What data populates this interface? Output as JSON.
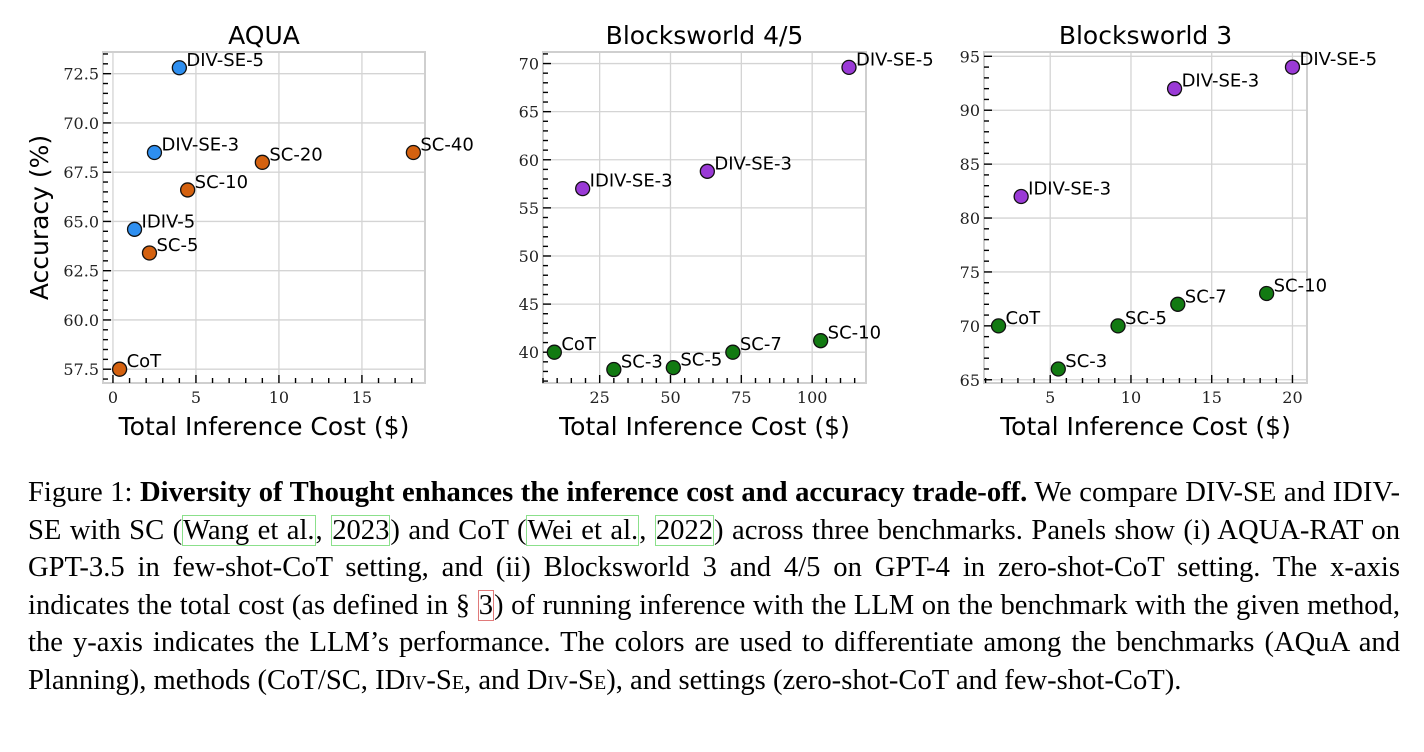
{
  "chart_data": [
    {
      "type": "scatter",
      "title": "AQUA",
      "xlabel": "Total Inference Cost ($)",
      "ylabel": "Accuracy (%)",
      "xlim": [
        -0.6,
        18.8
      ],
      "ylim": [
        56.8,
        73.6
      ],
      "xticks": [
        0,
        5,
        10,
        15
      ],
      "xtick_labels": [
        "0",
        "5",
        "10",
        "15"
      ],
      "x_minor_step": 1,
      "yticks": [
        57.5,
        60.0,
        62.5,
        65.0,
        67.5,
        70.0,
        72.5
      ],
      "ytick_labels": [
        "57.5",
        "60.0",
        "62.5",
        "65.0",
        "67.5",
        "70.0",
        "72.5"
      ],
      "y_minor_step": 0.5,
      "grid": true,
      "points": [
        {
          "label": "DIV-SE-5",
          "x": 4.0,
          "y": 72.8,
          "color": "#2e8ff0"
        },
        {
          "label": "DIV-SE-3",
          "x": 2.5,
          "y": 68.5,
          "color": "#2e8ff0"
        },
        {
          "label": "IDIV-5",
          "x": 1.3,
          "y": 64.6,
          "color": "#2e8ff0"
        },
        {
          "label": "SC-20",
          "x": 9.0,
          "y": 68.0,
          "color": "#d4610f"
        },
        {
          "label": "SC-40",
          "x": 18.1,
          "y": 68.5,
          "color": "#d4610f"
        },
        {
          "label": "SC-10",
          "x": 4.5,
          "y": 66.6,
          "color": "#d4610f"
        },
        {
          "label": "SC-5",
          "x": 2.2,
          "y": 63.4,
          "color": "#d4610f"
        },
        {
          "label": "CoT",
          "x": 0.4,
          "y": 57.5,
          "color": "#d4610f"
        }
      ]
    },
    {
      "type": "scatter",
      "title": "Blocksworld 4/5",
      "xlabel": "Total Inference Cost ($)",
      "ylabel": "",
      "xlim": [
        5,
        119
      ],
      "ylim": [
        36.8,
        71.2
      ],
      "xticks": [
        25,
        50,
        75,
        100
      ],
      "xtick_labels": [
        "25",
        "50",
        "75",
        "100"
      ],
      "x_minor_step": 5,
      "yticks": [
        40,
        45,
        50,
        55,
        60,
        65,
        70
      ],
      "ytick_labels": [
        "40",
        "45",
        "50",
        "55",
        "60",
        "65",
        "70"
      ],
      "y_minor_step": 1,
      "grid": true,
      "points": [
        {
          "label": "DIV-SE-5",
          "x": 113,
          "y": 69.6,
          "color": "#9a3ad6"
        },
        {
          "label": "DIV-SE-3",
          "x": 63,
          "y": 58.8,
          "color": "#9a3ad6"
        },
        {
          "label": "IDIV-SE-3",
          "x": 19,
          "y": 57.0,
          "color": "#9a3ad6"
        },
        {
          "label": "CoT",
          "x": 9,
          "y": 40.0,
          "color": "#127a12"
        },
        {
          "label": "SC-3",
          "x": 30,
          "y": 38.2,
          "color": "#127a12"
        },
        {
          "label": "SC-5",
          "x": 51,
          "y": 38.4,
          "color": "#127a12"
        },
        {
          "label": "SC-7",
          "x": 72,
          "y": 40.0,
          "color": "#127a12"
        },
        {
          "label": "SC-10",
          "x": 103,
          "y": 41.2,
          "color": "#127a12"
        }
      ]
    },
    {
      "type": "scatter",
      "title": "Blocksworld 3",
      "xlabel": "Total Inference Cost ($)",
      "ylabel": "",
      "xlim": [
        0.9,
        20.9
      ],
      "ylim": [
        64.7,
        95.4
      ],
      "xticks": [
        5,
        10,
        15,
        20
      ],
      "xtick_labels": [
        "5",
        "10",
        "15",
        "20"
      ],
      "x_minor_step": 1,
      "yticks": [
        65,
        70,
        75,
        80,
        85,
        90,
        95
      ],
      "ytick_labels": [
        "65",
        "70",
        "75",
        "80",
        "85",
        "90",
        "95"
      ],
      "y_minor_step": 1,
      "grid": true,
      "points": [
        {
          "label": "DIV-SE-5",
          "x": 20.0,
          "y": 94.0,
          "color": "#9a3ad6"
        },
        {
          "label": "DIV-SE-3",
          "x": 12.7,
          "y": 92.0,
          "color": "#9a3ad6"
        },
        {
          "label": "IDIV-SE-3",
          "x": 3.2,
          "y": 82.0,
          "color": "#9a3ad6"
        },
        {
          "label": "CoT",
          "x": 1.8,
          "y": 70.0,
          "color": "#127a12"
        },
        {
          "label": "SC-3",
          "x": 5.5,
          "y": 66.0,
          "color": "#127a12"
        },
        {
          "label": "SC-5",
          "x": 9.2,
          "y": 70.0,
          "color": "#127a12"
        },
        {
          "label": "SC-7",
          "x": 12.9,
          "y": 72.0,
          "color": "#127a12"
        },
        {
          "label": "SC-10",
          "x": 18.4,
          "y": 73.0,
          "color": "#127a12"
        }
      ]
    }
  ],
  "caption": {
    "figure_label": "Figure 1:",
    "bold_title": "Diversity of Thought enhances the inference cost and accuracy trade-off.",
    "t1": " We compare DIV-SE and IDIV-SE with SC (",
    "cite1_author": "Wang et al.",
    "cite1_year": "2023",
    "t2": ") and CoT (",
    "cite2_author": "Wei et al.",
    "cite2_year": "2022",
    "t3": ") across three benchmarks. Panels show (i) AQUA-RAT on GPT-3.5 in few-shot-CoT setting, and (ii) Blocksworld 3 and 4/5 on GPT-4 in zero-shot-CoT setting. The x-axis indicates the total cost (as defined in § ",
    "section_ref": "3",
    "t4": ") of running inference with the LLM on the benchmark with the given method, the y-axis indicates the LLM’s performance.  The colors are used to differentiate among the benchmarks (AQuA and Planning), methods (CoT/SC, I",
    "sc1": "Div-Se",
    "t5": ", and ",
    "sc2": "Div-Se",
    "t6": "), and settings (zero-shot-CoT and few-shot-CoT)."
  }
}
